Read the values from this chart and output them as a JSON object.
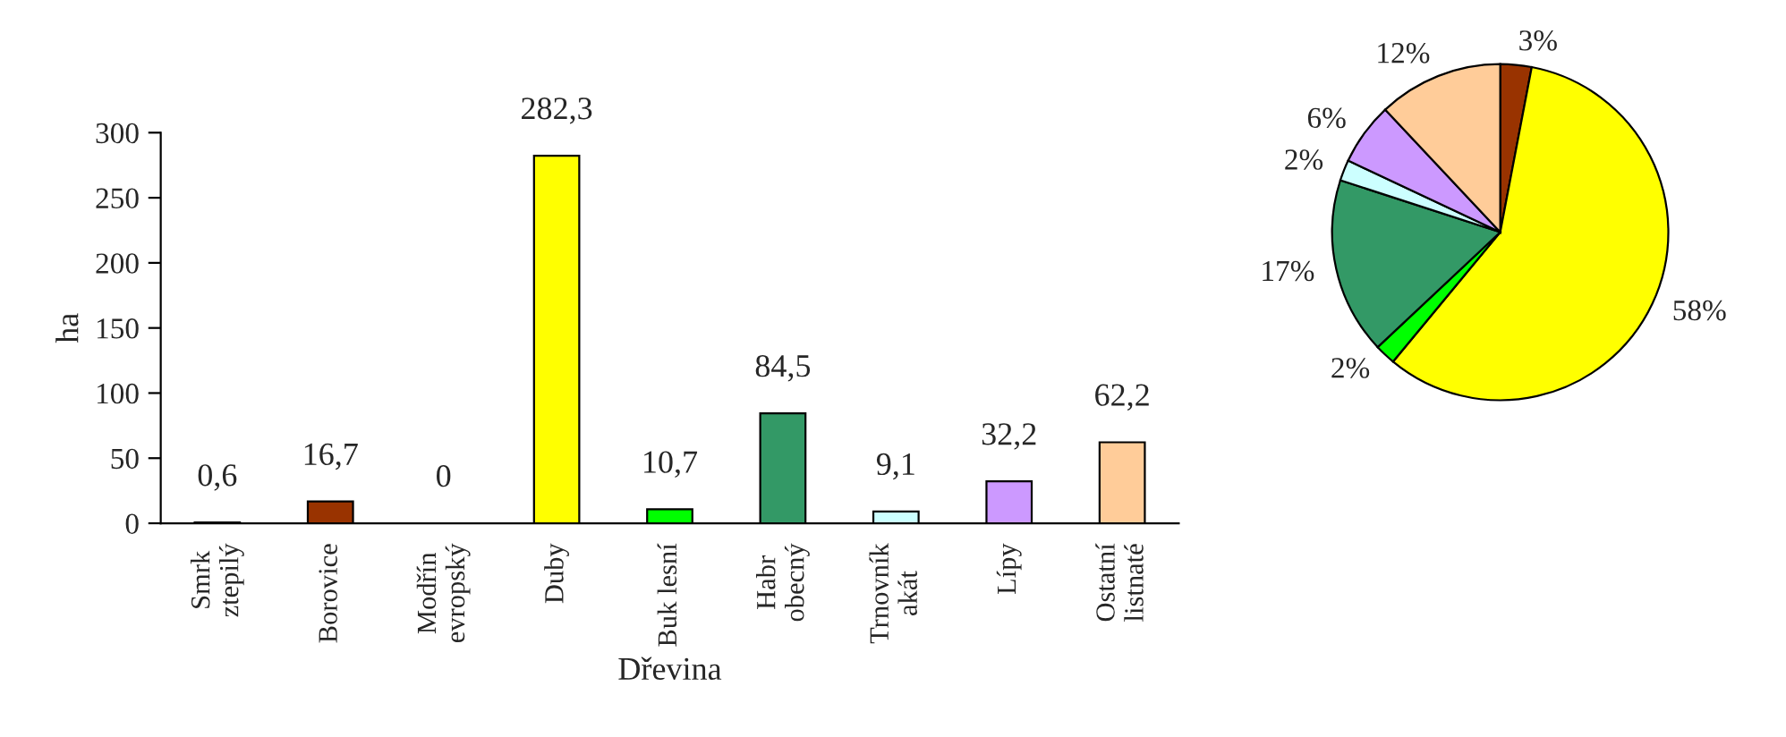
{
  "chart_data": [
    {
      "type": "bar",
      "xlabel": "Dřevina",
      "ylabel": "ha",
      "categories": [
        "Smrk\nztepilý",
        "Borovice",
        "Modřín\nevropský",
        "Duby",
        "Buk lesní",
        "Habr\nobecný",
        "Trnovník\nakát",
        "Lípy",
        "Ostatní\nlistnaté"
      ],
      "values": [
        0.6,
        16.7,
        0,
        282.3,
        10.7,
        84.5,
        9.1,
        32.2,
        62.2
      ],
      "colors": [
        "#996633",
        "#993300",
        "#808080",
        "#ffff00",
        "#00ff00",
        "#339966",
        "#ccffff",
        "#cc99ff",
        "#ffcc99"
      ],
      "value_labels": [
        "0,6",
        "16,7",
        "0",
        "282,3",
        "10,7",
        "84,5",
        "9,1",
        "32,2",
        "62,2"
      ],
      "ylim": [
        0,
        300
      ],
      "yticks": [
        0,
        50,
        100,
        150,
        200,
        250,
        300
      ],
      "grid": false
    },
    {
      "type": "pie",
      "categories": [
        null,
        null,
        null,
        null,
        null,
        null,
        null
      ],
      "values": [
        3,
        58,
        2,
        17,
        2,
        6,
        12
      ],
      "colors": [
        "#993300",
        "#ffff00",
        "#00ff00",
        "#339966",
        "#ccffff",
        "#cc99ff",
        "#ffcc99"
      ],
      "value_labels": [
        "3%",
        "58%",
        "2%",
        "17%",
        "2%",
        "6%",
        "12%"
      ]
    }
  ]
}
